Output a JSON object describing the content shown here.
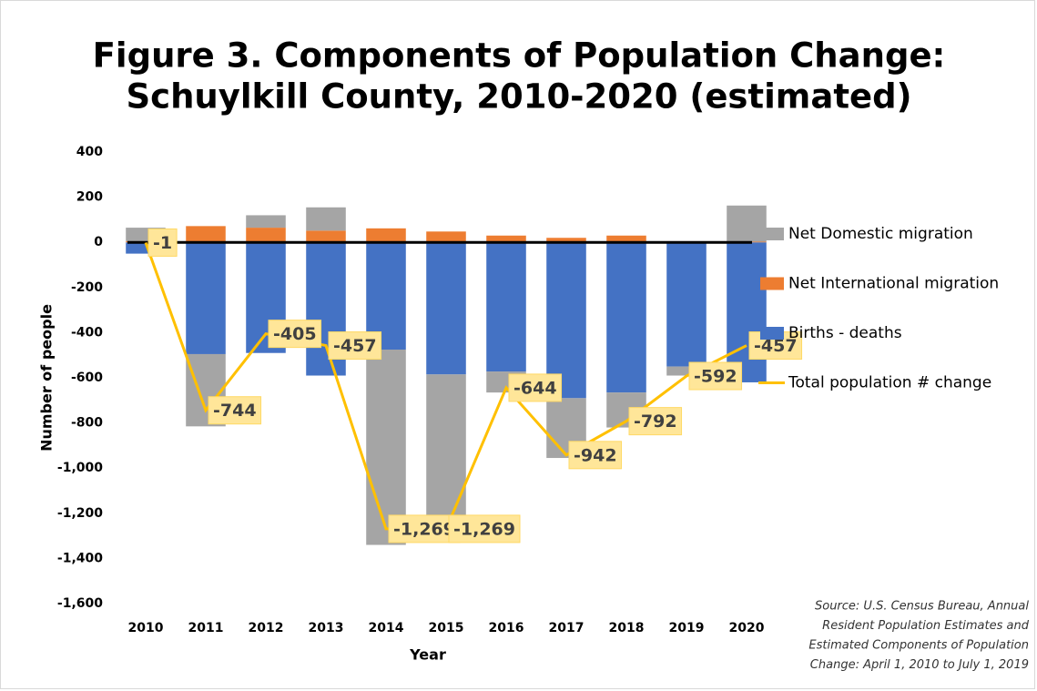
{
  "chart_data": {
    "type": "bar",
    "title": [
      "Figure 3. Components of Population Change:",
      "Schuylkill County, 2010-2020 (estimated)"
    ],
    "xlabel": "Year",
    "ylabel": "Number of people",
    "categories": [
      "2010",
      "2011",
      "2012",
      "2013",
      "2014",
      "2015",
      "2016",
      "2017",
      "2018",
      "2019",
      "2020"
    ],
    "stacked": true,
    "series": [
      {
        "name": "Births - deaths",
        "color": "#4472c4",
        "values": [
          -50,
          -495,
          -490,
          -590,
          -475,
          -585,
          -572,
          -690,
          -665,
          -550,
          -620
        ]
      },
      {
        "name": "Net International migration",
        "color": "#ed7d31",
        "values": [
          5,
          72,
          65,
          52,
          62,
          48,
          30,
          20,
          30,
          5,
          3
        ]
      },
      {
        "name": "Net Domestic migration",
        "color": "#a5a5a5",
        "values": [
          60,
          -320,
          55,
          103,
          -865,
          -730,
          -93,
          -265,
          -155,
          -40,
          160
        ]
      },
      {
        "name": "Total population # change",
        "type": "line",
        "color": "#ffc000",
        "values": [
          -1,
          -744,
          -405,
          -457,
          -1269,
          -1269,
          -644,
          -942,
          -792,
          -592,
          -457
        ],
        "value_labels": [
          "-1",
          "-744",
          "-405",
          "-457",
          "-1,269",
          "-1,269",
          "-644",
          "-942",
          "-792",
          "-592",
          "-457"
        ]
      }
    ],
    "legend_order": [
      2,
      1,
      0,
      3
    ],
    "ylim": [
      -1600,
      400
    ],
    "yticks": [
      {
        "value": -1600,
        "label": "-1,600"
      },
      {
        "value": -1400,
        "label": "-1,400"
      },
      {
        "value": -1200,
        "label": "-1,200"
      },
      {
        "value": -1000,
        "label": "-1,000"
      },
      -800,
      -600,
      -400,
      -200,
      0,
      200,
      400
    ],
    "source": [
      "Source: U.S. Census Bureau, Annual",
      "Resident Population Estimates and",
      "Estimated Components of Population",
      "Change: April 1, 2010 to July 1, 2019"
    ]
  }
}
